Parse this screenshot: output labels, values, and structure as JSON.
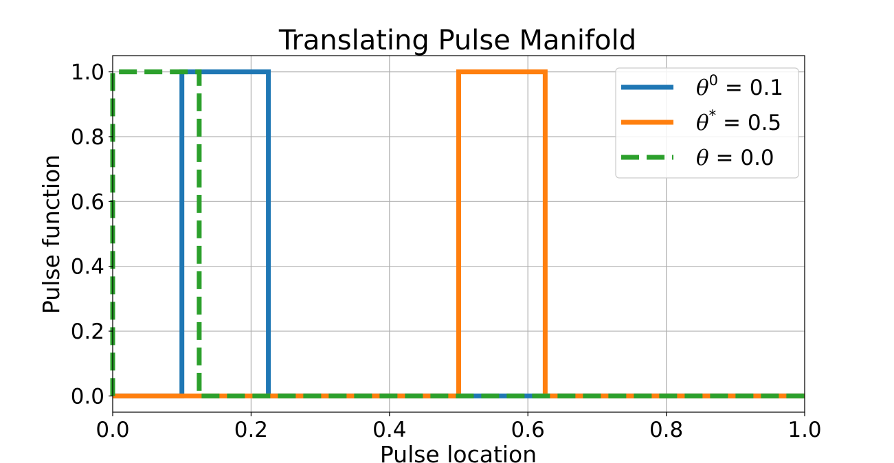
{
  "chart_data": {
    "type": "line",
    "title": "Translating Pulse Manifold",
    "xlabel": "Pulse location",
    "ylabel": "Pulse function",
    "xlim": [
      0.0,
      1.0
    ],
    "ylim": [
      -0.05,
      1.05
    ],
    "xticks": [
      "0.0",
      "0.2",
      "0.4",
      "0.6",
      "0.8",
      "1.0"
    ],
    "yticks": [
      "0.0",
      "0.2",
      "0.4",
      "0.6",
      "0.8",
      "1.0"
    ],
    "grid": true,
    "legend_position": "top-right",
    "series": [
      {
        "name": "θ⁰ = 0.1",
        "legend_symbol": "θ",
        "legend_sup": "0",
        "legend_value": "0.1",
        "color": "#1f77b4",
        "style": "solid",
        "x": [
          0.0,
          0.1,
          0.1,
          0.225,
          0.225,
          1.0
        ],
        "y": [
          0,
          0,
          1,
          1,
          0,
          0
        ]
      },
      {
        "name": "θ* = 0.5",
        "legend_symbol": "θ",
        "legend_sup": "*",
        "legend_value": "0.5",
        "color": "#ff7f0e",
        "style": "solid",
        "x": [
          0.0,
          0.5,
          0.5,
          0.625,
          0.625,
          1.0
        ],
        "y": [
          0,
          0,
          1,
          1,
          0,
          0
        ]
      },
      {
        "name": "θ = 0.0",
        "legend_symbol": "θ",
        "legend_sup": "",
        "legend_value": "0.0",
        "color": "#2ca02c",
        "style": "dashed",
        "x": [
          0.0,
          0.0,
          0.125,
          0.125,
          1.0
        ],
        "y": [
          0,
          1,
          1,
          0,
          0
        ]
      }
    ]
  }
}
